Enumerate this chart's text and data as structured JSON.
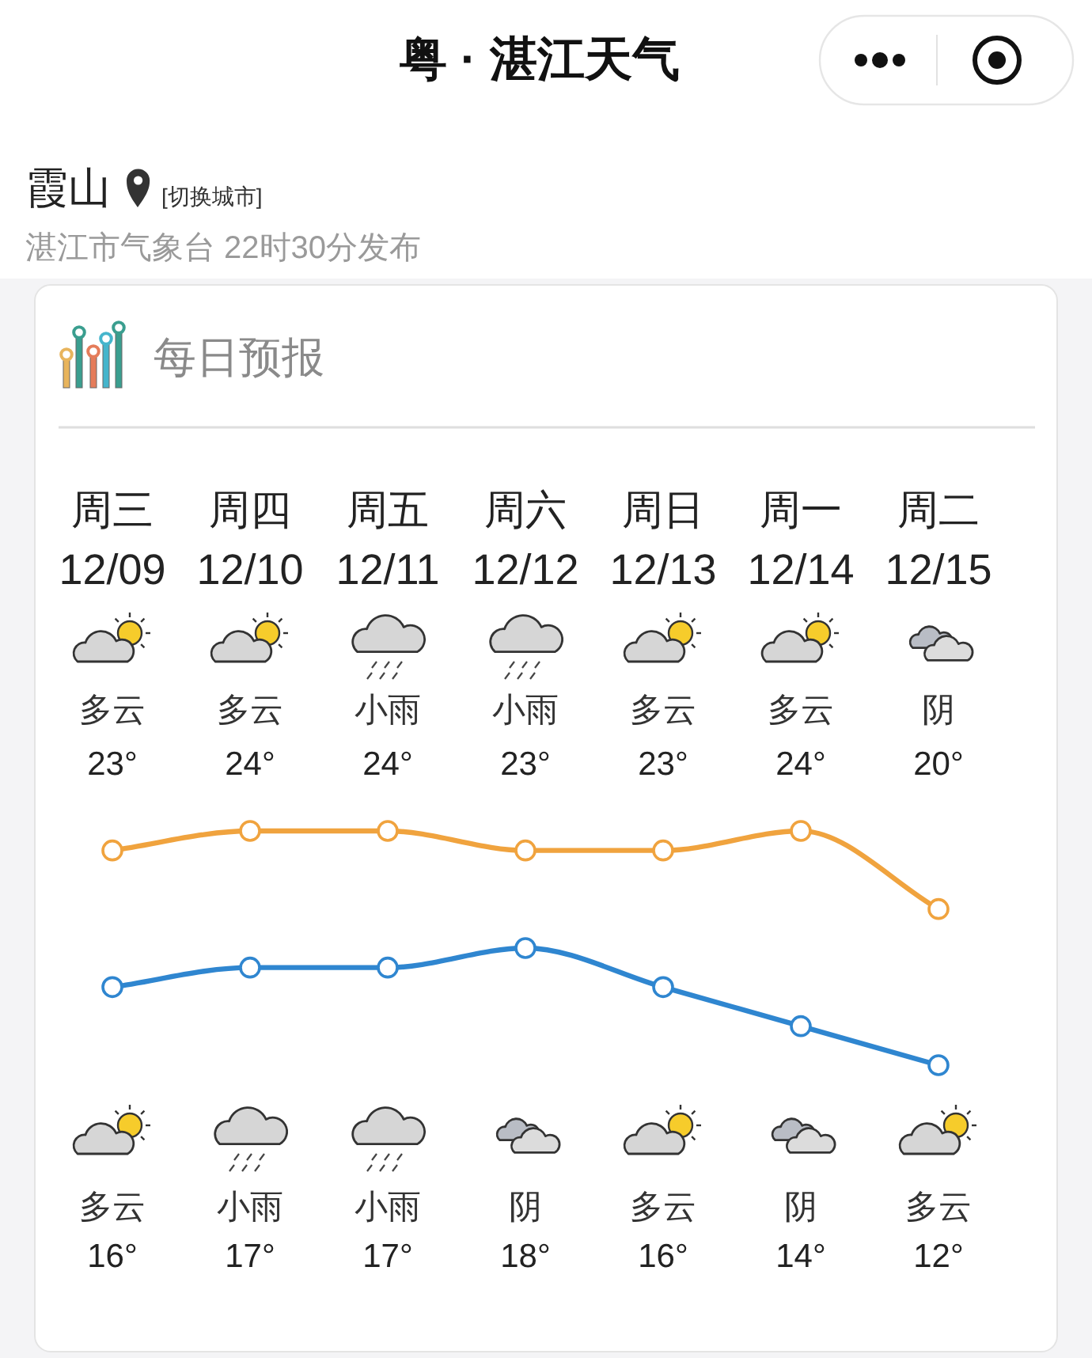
{
  "chart_data": {
    "type": "line",
    "title": "粤 · 湛江天气",
    "subtitle": "每日预报",
    "categories": [
      "周三\n12/09",
      "周四\n12/10",
      "周五\n12/11",
      "周六\n12/12",
      "周日\n12/13",
      "周一\n12/14",
      "周二\n12/15"
    ],
    "series": [
      {
        "color": "#f0a33e",
        "values": [
          23,
          24,
          24,
          23,
          23,
          24,
          20
        ],
        "value_labels": [
          "23°",
          "24°",
          "24°",
          "23°",
          "23°",
          "24°",
          "20°"
        ]
      },
      {
        "color": "#2f86d0",
        "values": [
          16,
          17,
          17,
          18,
          16,
          14,
          12
        ],
        "value_labels": [
          "16°",
          "17°",
          "17°",
          "18°",
          "16°",
          "14°",
          "12°"
        ]
      }
    ],
    "marker": "circle",
    "annotations": [
      "霞山",
      "[切换城市]",
      "湛江市气象台 22时30分发布",
      "多云",
      "多云",
      "小雨",
      "小雨",
      "多云",
      "多云",
      "阴",
      "多云",
      "小雨",
      "小雨",
      "阴",
      "多云",
      "阴",
      "多云"
    ]
  }
}
